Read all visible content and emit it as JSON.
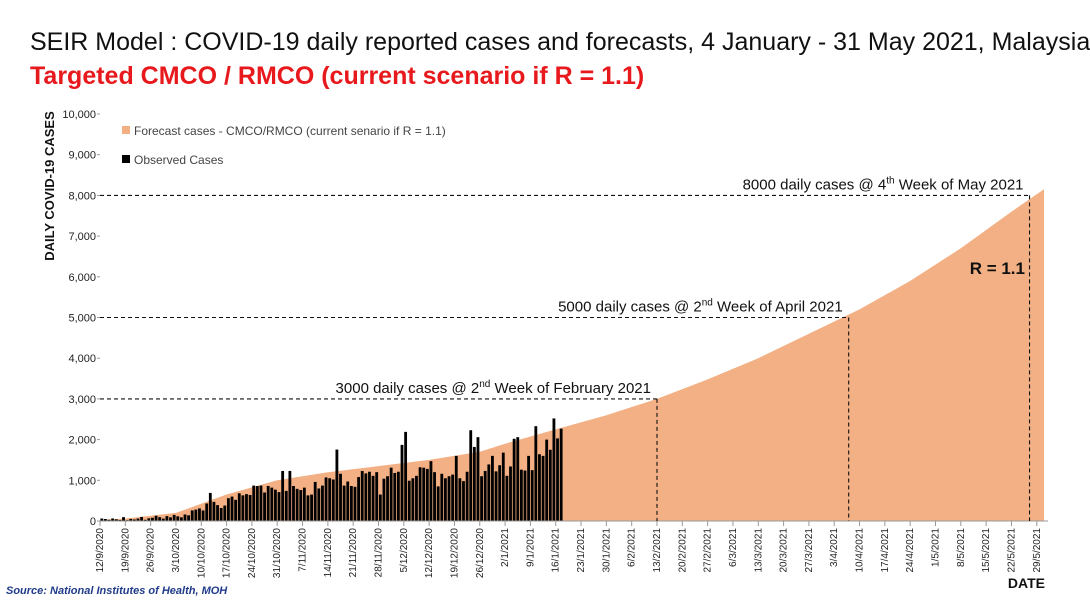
{
  "title": "SEIR Model : COVID-19 daily reported cases and forecasts, 4 January - 31 May 2021, Malaysia",
  "subtitle": "Targeted CMCO / RMCO (current scenario if R = 1.1)",
  "subtitle_color": "#e8191c",
  "source": "Source: National Institutes of Health, MOH",
  "chart_data": {
    "type": "bar",
    "ylabel": "DAILY COVID-19 CASES",
    "xlabel": "DATE",
    "ylim": [
      0,
      10000
    ],
    "yticks": [
      "0",
      "1,000",
      "2,000",
      "3,000",
      "4,000",
      "5,000",
      "6,000",
      "7,000",
      "8,000",
      "9,000",
      "10,000"
    ],
    "ytick_values": [
      0,
      1000,
      2000,
      3000,
      4000,
      5000,
      6000,
      7000,
      8000,
      9000,
      10000
    ],
    "xticks": [
      "12/9/2020",
      "19/9/2020",
      "26/9/2020",
      "3/10/2020",
      "10/10/2020",
      "17/10/2020",
      "24/10/2020",
      "31/10/2020",
      "7/11/2020",
      "14/11/2020",
      "21/11/2020",
      "28/11/2020",
      "5/12/2020",
      "12/12/2020",
      "19/12/2020",
      "26/12/2020",
      "2/1/2021",
      "9/1/2021",
      "16/1/2021",
      "23/1/2021",
      "30/1/2021",
      "6/2/2021",
      "13/2/2021",
      "20/2/2021",
      "27/2/2021",
      "6/3/2021",
      "13/3/2021",
      "20/3/2021",
      "27/3/2021",
      "3/4/2021",
      "10/4/2021",
      "17/4/2021",
      "24/4/2021",
      "1/5/2021",
      "8/5/2021",
      "15/5/2021",
      "22/5/2021",
      "29/5/2021"
    ],
    "legend": [
      "Forecast cases - CMCO/RMCO (current senario if R = 1.1)",
      "Observed Cases"
    ],
    "legend_position": "top-left",
    "colors": {
      "forecast": "#f2b084",
      "observed": "#000000",
      "forecast_line": "#e69a6a"
    },
    "series": [
      {
        "name": "Observed Cases",
        "start_date": "12/9/2020",
        "values": [
          61,
          50,
          30,
          62,
          42,
          25,
          95,
          20,
          51,
          37,
          60,
          100,
          30,
          67,
          80,
          130,
          95,
          60,
          120,
          90,
          150,
          115,
          90,
          160,
          140,
          260,
          280,
          310,
          260,
          430,
          690,
          470,
          390,
          320,
          380,
          560,
          600,
          520,
          680,
          630,
          660,
          640,
          870,
          860,
          870,
          700,
          860,
          820,
          770,
          710,
          1230,
          740,
          1230,
          860,
          790,
          760,
          820,
          630,
          650,
          960,
          800,
          870,
          1070,
          1050,
          1020,
          1755,
          1160,
          870,
          970,
          860,
          840,
          1080,
          1230,
          1170,
          1210,
          1110,
          1200,
          650,
          1040,
          1100,
          1310,
          1180,
          1210,
          1870,
          2190,
          990,
          1050,
          1110,
          1320,
          1310,
          1280,
          1470,
          1200,
          850,
          1160,
          1050,
          1100,
          1140,
          1600,
          1050,
          980,
          1210,
          2230,
          1820,
          2060,
          1100,
          1230,
          1390,
          1600,
          1220,
          1370,
          1680,
          1110,
          1340,
          2020,
          2060,
          1260,
          1240,
          1600,
          1250,
          2330,
          1640,
          1600,
          2000,
          1750,
          2520,
          2030,
          2270
        ]
      },
      {
        "name": "Forecast cases - CMCO/RMCO (current senario if R = 1.1)",
        "x": [
          "12/9/2020",
          "19/9/2020",
          "3/10/2020",
          "17/10/2020",
          "31/10/2020",
          "14/11/2020",
          "28/11/2020",
          "12/12/2020",
          "26/12/2020",
          "2/1/2021",
          "16/1/2021",
          "30/1/2021",
          "13/2/2021",
          "27/2/2021",
          "13/3/2021",
          "27/3/2021",
          "10/4/2021",
          "24/4/2021",
          "8/5/2021",
          "22/5/2021",
          "31/5/2021"
        ],
        "values": [
          30,
          60,
          200,
          650,
          1000,
          1200,
          1350,
          1500,
          1700,
          1900,
          2250,
          2600,
          3000,
          3480,
          4000,
          4600,
          5200,
          5900,
          6700,
          7600,
          8150
        ]
      }
    ],
    "annotations": [
      {
        "value": 3000,
        "date": "13/2/2021",
        "text": "3000 daily cases @ 2",
        "sup": "nd",
        "text_end": " Week of February 2021"
      },
      {
        "value": 5000,
        "date": "7/4/2021",
        "text": "5000 daily cases @ 2",
        "sup": "nd",
        "text_end": " Week of April 2021"
      },
      {
        "value": 8000,
        "date": "27/5/2021",
        "text": "8000 daily cases @ 4",
        "sup": "th",
        "text_end": " Week of May 2021"
      }
    ],
    "r_label": "R = 1.1"
  }
}
